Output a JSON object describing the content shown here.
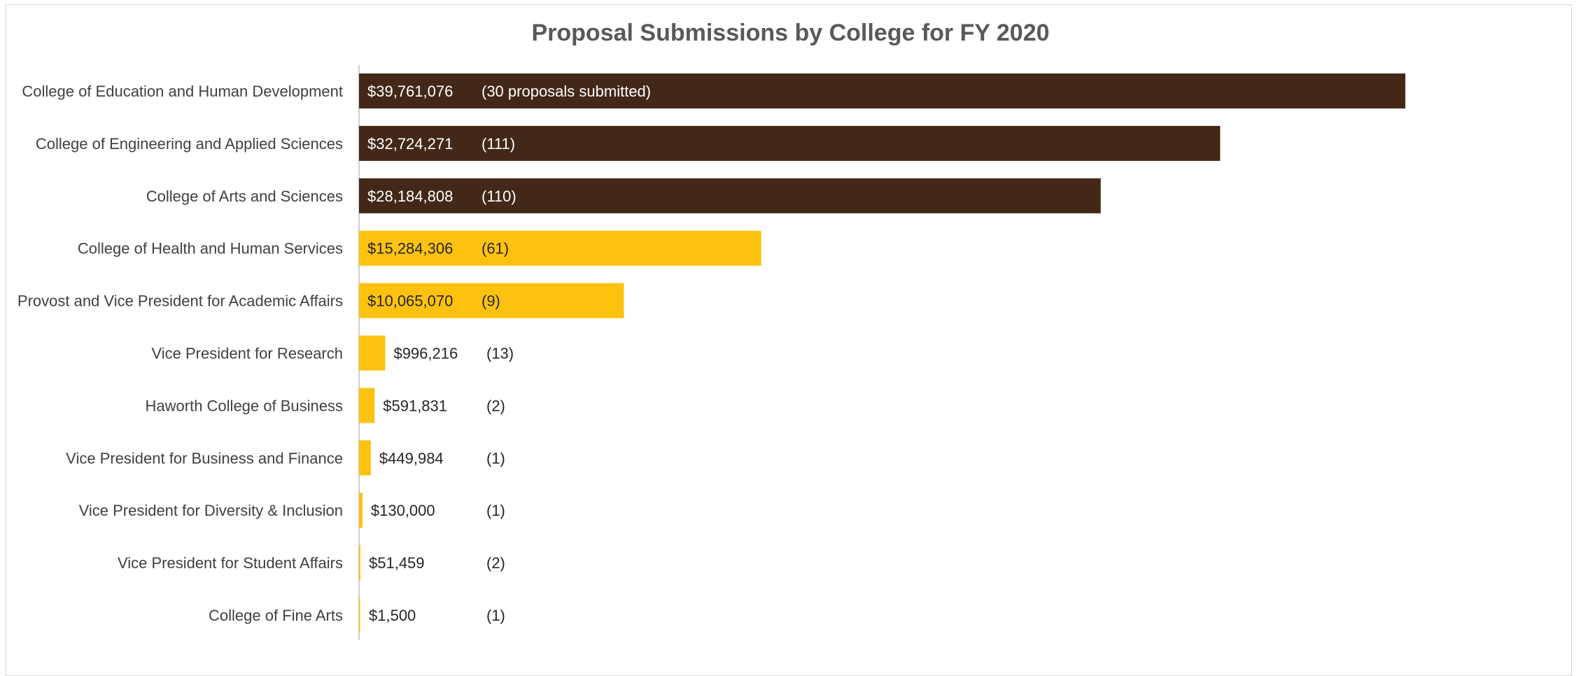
{
  "chart_data": {
    "type": "bar",
    "orientation": "horizontal",
    "title": "Proposal Submissions by College for FY 2020",
    "xlabel": "",
    "ylabel": "",
    "xlim": [
      0,
      45000000
    ],
    "grid": false,
    "legend": "none",
    "categories": [
      "College of Education and Human Development",
      "College of Engineering and Applied Sciences",
      "College of Arts and Sciences",
      "College of Health and Human Services",
      "Provost and Vice President for Academic Affairs",
      "Vice President for Research",
      "Haworth College of Business",
      "Vice President for Business and Finance",
      "Vice President for Diversity & Inclusion",
      "Vice President for Student Affairs",
      "College of Fine Arts"
    ],
    "values": [
      39761076,
      32724271,
      28184808,
      15284306,
      10065070,
      996216,
      591831,
      449984,
      130000,
      51459,
      1500
    ],
    "value_labels": [
      "$39,761,076",
      "$32,724,271",
      "$28,184,808",
      "$15,284,306",
      "$10,065,070",
      "$996,216",
      "$591,831",
      "$449,984",
      "$130,000",
      "$51,459",
      "$1,500"
    ],
    "count_labels": [
      "(30 proposals submitted)",
      "(111)",
      "(110)",
      "(61)",
      "(9)",
      "(13)",
      "(2)",
      "(1)",
      "(1)",
      "(2)",
      "(1)"
    ],
    "bar_colors": [
      "#432818",
      "#432818",
      "#432818",
      "#fcc20f",
      "#fcc20f",
      "#fcc20f",
      "#fcc20f",
      "#fcc20f",
      "#fcc20f",
      "#fcc20f",
      "#fcc20f"
    ],
    "colors": {
      "dark": "#432818",
      "gold": "#fcc20f",
      "light_text": "#ffffff",
      "dark_text": "#262626"
    }
  }
}
